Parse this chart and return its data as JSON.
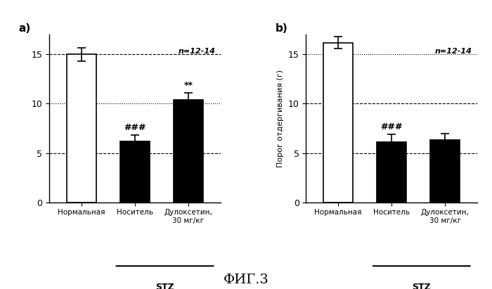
{
  "panel_a": {
    "categories": [
      "Нормальная",
      "Носитель",
      "Дулоксетин,\n30 мг/кг"
    ],
    "values": [
      15.0,
      6.2,
      10.4
    ],
    "errors": [
      0.7,
      0.6,
      0.7
    ],
    "colors": [
      "white",
      "black",
      "black"
    ],
    "annotations": [
      "",
      "###",
      "**"
    ],
    "hlines": [
      5,
      10,
      15
    ],
    "hline_styles": [
      "--",
      ":",
      "--"
    ],
    "n_label": "n=12-14",
    "stz_label": "STZ",
    "panel_label": "a)",
    "ylim": [
      0,
      17
    ],
    "yticks": [
      0,
      5,
      10,
      15
    ]
  },
  "panel_b": {
    "categories": [
      "Нормальная",
      "Носитель",
      "Дулоксетин,\n30 мг/кг"
    ],
    "values": [
      16.2,
      6.1,
      6.3
    ],
    "errors": [
      0.6,
      0.8,
      0.7
    ],
    "colors": [
      "white",
      "black",
      "black"
    ],
    "annotations": [
      "",
      "###",
      ""
    ],
    "hlines": [
      5,
      10,
      15
    ],
    "hline_styles": [
      "--",
      "--",
      ":"
    ],
    "n_label": "n=12-14",
    "stz_label": "STZ",
    "panel_label": "b)",
    "ylabel": "Порог отдергивания (г)",
    "ylim": [
      0,
      17
    ],
    "yticks": [
      0,
      5,
      10,
      15
    ]
  },
  "figure_title": "ФИГ.3",
  "background_color": "white"
}
